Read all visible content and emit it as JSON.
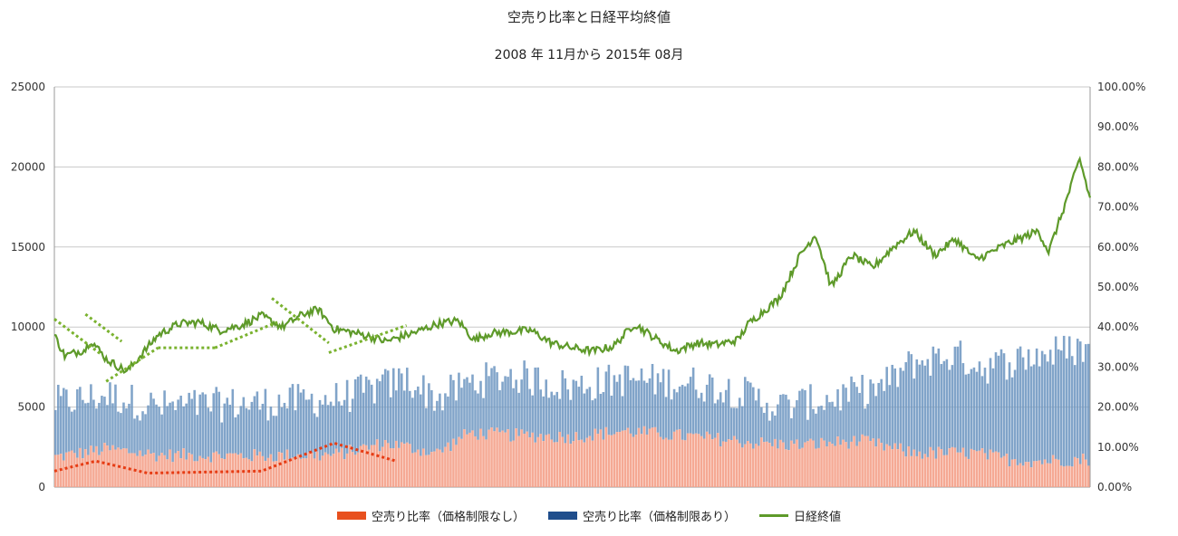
{
  "chart_data": {
    "type": "bar+line",
    "title": "空売り比率と日経平均終値",
    "subtitle": "2008 年 11月から 2015年 08月",
    "y_left": {
      "ticks": [
        "0",
        "5000",
        "10000",
        "15000",
        "20000",
        "25000"
      ],
      "range": [
        0,
        25000
      ]
    },
    "y_right": {
      "ticks": [
        "0.00%",
        "10.00%",
        "20.00%",
        "30.00%",
        "40.00%",
        "50.00%",
        "60.00%",
        "70.00%",
        "80.00%",
        "90.00%",
        "100.00%"
      ],
      "range": [
        0,
        100
      ]
    },
    "grid": true,
    "legend_position": "bottom",
    "series": [
      {
        "name": "空売り比率（価格制限なし）",
        "type": "bar",
        "axis": "right",
        "color": "#f4a088",
        "approx_profile": [
          [
            0,
            7.5
          ],
          [
            0.05,
            9.5
          ],
          [
            0.1,
            8.0
          ],
          [
            0.2,
            7.8
          ],
          [
            0.27,
            8.0
          ],
          [
            0.32,
            11.0
          ],
          [
            0.37,
            8.5
          ],
          [
            0.4,
            13.5
          ],
          [
            0.44,
            13.0
          ],
          [
            0.5,
            12.5
          ],
          [
            0.55,
            14.0
          ],
          [
            0.62,
            12.5
          ],
          [
            0.68,
            11.0
          ],
          [
            0.72,
            10.5
          ],
          [
            0.78,
            11.5
          ],
          [
            0.83,
            8.5
          ],
          [
            0.89,
            8.5
          ],
          [
            0.92,
            7.0
          ],
          [
            0.95,
            6.5
          ],
          [
            1,
            7.0
          ]
        ]
      },
      {
        "name": "空売り比率（価格制限あり）",
        "type": "bar",
        "axis": "right",
        "color": "#6b94c0",
        "approx_profile": [
          [
            0,
            21
          ],
          [
            0.05,
            23
          ],
          [
            0.1,
            20
          ],
          [
            0.2,
            21
          ],
          [
            0.27,
            22
          ],
          [
            0.3,
            24
          ],
          [
            0.34,
            27
          ],
          [
            0.37,
            22
          ],
          [
            0.4,
            26
          ],
          [
            0.44,
            28
          ],
          [
            0.5,
            25
          ],
          [
            0.55,
            27
          ],
          [
            0.62,
            26
          ],
          [
            0.66,
            24
          ],
          [
            0.7,
            20
          ],
          [
            0.75,
            22
          ],
          [
            0.8,
            25
          ],
          [
            0.83,
            31
          ],
          [
            0.87,
            33
          ],
          [
            0.9,
            30
          ],
          [
            0.95,
            33
          ],
          [
            1,
            35
          ]
        ]
      },
      {
        "name": "日経終値",
        "type": "line",
        "axis": "left",
        "color": "#5e9a2a",
        "approx_profile": [
          [
            0,
            9500
          ],
          [
            0.01,
            8200
          ],
          [
            0.03,
            8600
          ],
          [
            0.035,
            9200
          ],
          [
            0.05,
            8000
          ],
          [
            0.07,
            7200
          ],
          [
            0.1,
            9500
          ],
          [
            0.12,
            10200
          ],
          [
            0.14,
            10300
          ],
          [
            0.16,
            9800
          ],
          [
            0.18,
            10100
          ],
          [
            0.2,
            10700
          ],
          [
            0.22,
            10000
          ],
          [
            0.24,
            10800
          ],
          [
            0.255,
            11100
          ],
          [
            0.27,
            9900
          ],
          [
            0.3,
            9500
          ],
          [
            0.32,
            9100
          ],
          [
            0.35,
            9700
          ],
          [
            0.37,
            10200
          ],
          [
            0.39,
            10400
          ],
          [
            0.405,
            9200
          ],
          [
            0.42,
            9600
          ],
          [
            0.44,
            9700
          ],
          [
            0.46,
            9800
          ],
          [
            0.48,
            9000
          ],
          [
            0.5,
            8700
          ],
          [
            0.52,
            8500
          ],
          [
            0.54,
            8800
          ],
          [
            0.56,
            10200
          ],
          [
            0.58,
            9300
          ],
          [
            0.6,
            8500
          ],
          [
            0.62,
            9000
          ],
          [
            0.64,
            8900
          ],
          [
            0.66,
            9200
          ],
          [
            0.67,
            10200
          ],
          [
            0.7,
            11800
          ],
          [
            0.72,
            14500
          ],
          [
            0.735,
            15800
          ],
          [
            0.75,
            12500
          ],
          [
            0.77,
            14500
          ],
          [
            0.79,
            13700
          ],
          [
            0.81,
            15000
          ],
          [
            0.83,
            16000
          ],
          [
            0.85,
            14500
          ],
          [
            0.87,
            15500
          ],
          [
            0.89,
            14200
          ],
          [
            0.92,
            15200
          ],
          [
            0.95,
            16000
          ],
          [
            0.96,
            14700
          ],
          [
            0.975,
            17500
          ],
          [
            0.99,
            20500
          ],
          [
            1,
            18000
          ]
        ]
      }
    ]
  }
}
